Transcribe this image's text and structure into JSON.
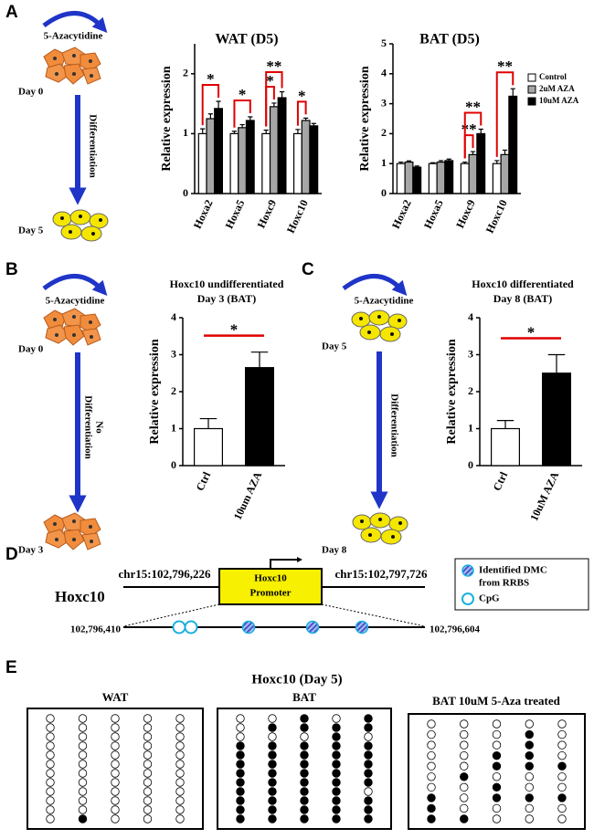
{
  "panel_labels": [
    "A",
    "B",
    "C",
    "D",
    "E"
  ],
  "schemes": [
    {
      "drug": "5-Azacytidine",
      "start": "Day 0",
      "process": [
        "Differentiation"
      ],
      "end": "Day 5"
    },
    {
      "drug": "5-Azacytidine",
      "start": "Day 0",
      "process": [
        "No",
        "Differentiation"
      ],
      "end": "Day 3"
    },
    {
      "drug": "5-Azacytidine",
      "start": "Day 5",
      "process": [
        "Differentiation"
      ],
      "end": "Day 8"
    }
  ],
  "chart_data": [
    {
      "type": "bar",
      "title": "WAT (D5)",
      "ylabel": "Relative expression",
      "categories": [
        "Hoxa2",
        "Hoxa5",
        "Hoxc9",
        "Hoxc10"
      ],
      "series": [
        {
          "name": "Control",
          "color": "#ffffff",
          "values": [
            1,
            1,
            1,
            1
          ],
          "errors": [
            0.08,
            0.04,
            0.06,
            0.07
          ]
        },
        {
          "name": "2uM AZA",
          "color": "#a6a6a6",
          "values": [
            1.25,
            1.1,
            1.45,
            1.22
          ],
          "errors": [
            0.08,
            0.05,
            0.06,
            0.04
          ]
        },
        {
          "name": "10uM AZA",
          "color": "#000000",
          "values": [
            1.42,
            1.22,
            1.6,
            1.13
          ],
          "errors": [
            0.12,
            0.06,
            0.1,
            0.04
          ]
        }
      ],
      "ylim": [
        0,
        2.5
      ],
      "yticks": [
        0,
        1,
        2
      ],
      "annotation_style": "bracket",
      "annotations": [
        {
          "label": "*",
          "category": 0,
          "from": 0,
          "to": 2
        },
        {
          "label": "*",
          "category": 1,
          "from": 0,
          "to": 2
        },
        {
          "label": "*",
          "category": 2,
          "from": 0,
          "to": 1
        },
        {
          "label": "**",
          "category": 2,
          "from": 0,
          "to": 2
        },
        {
          "label": "*",
          "category": 3,
          "from": 0,
          "to": 1
        }
      ]
    },
    {
      "type": "bar",
      "title": "BAT (D5)",
      "ylabel": "Relative expression",
      "categories": [
        "Hoxa2",
        "Hoxa5",
        "Hoxc9",
        "Hoxc10"
      ],
      "series": [
        {
          "name": "Control",
          "color": "#ffffff",
          "values": [
            1,
            1,
            1,
            1
          ],
          "errors": [
            0.05,
            0.03,
            0.05,
            0.1
          ]
        },
        {
          "name": "2uM AZA",
          "color": "#a6a6a6",
          "values": [
            1.05,
            1.05,
            1.3,
            1.3
          ],
          "errors": [
            0.04,
            0.05,
            0.1,
            0.15
          ]
        },
        {
          "name": "10uM AZA",
          "color": "#000000",
          "values": [
            0.88,
            1.1,
            2.0,
            3.25
          ],
          "errors": [
            0.04,
            0.05,
            0.15,
            0.25
          ]
        }
      ],
      "ylim": [
        0,
        5
      ],
      "yticks": [
        0,
        1,
        2,
        3,
        4,
        5
      ],
      "legend": "right",
      "annotation_style": "bracket",
      "annotations": [
        {
          "label": "**",
          "category": 2,
          "from": 0,
          "to": 1
        },
        {
          "label": "**",
          "category": 2,
          "from": 0,
          "to": 2
        },
        {
          "label": "**",
          "category": 3,
          "from": 0,
          "to": 2
        }
      ]
    },
    {
      "type": "bar",
      "title": [
        "Hoxc10 undifferentiated",
        "Day 3 (BAT)"
      ],
      "ylabel": "Relative expression",
      "categories": [
        "Ctrl",
        "10um AZA"
      ],
      "values": [
        1,
        2.65
      ],
      "errors": [
        0.27,
        0.42
      ],
      "colors": [
        "#ffffff",
        "#000000"
      ],
      "ylim": [
        0,
        4
      ],
      "yticks": [
        0,
        1,
        2,
        3,
        4
      ],
      "annotation_style": "line",
      "annotations": [
        {
          "label": "*",
          "from": 0,
          "to": 1
        }
      ]
    },
    {
      "type": "bar",
      "title": [
        "Hoxc10 differentiated",
        "Day 8 (BAT)"
      ],
      "ylabel": "Relative expression",
      "categories": [
        "Ctrl",
        "10uM AZA"
      ],
      "values": [
        1,
        2.5
      ],
      "errors": [
        0.22,
        0.5
      ],
      "colors": [
        "#ffffff",
        "#000000"
      ],
      "ylim": [
        0,
        4
      ],
      "yticks": [
        0,
        1,
        2,
        3,
        4
      ],
      "annotation_style": "line",
      "annotations": [
        {
          "label": "*",
          "from": 0,
          "to": 1
        }
      ]
    }
  ],
  "panel_d": {
    "gene": "Hoxc10",
    "left_coord": "chr15:102,796,226",
    "right_coord": "chr15:102,797,726",
    "box": [
      "Hoxc10",
      "Promoter"
    ],
    "left_sub": "102,796,410",
    "right_sub": "102,796,604",
    "legend": [
      "Identified DMC",
      "from RRBS",
      "CpG"
    ]
  },
  "panel_e": {
    "title": "Hoxc10 (Day 5)",
    "groups": [
      {
        "name": "WAT",
        "columns": [
          [
            0,
            0,
            0,
            0,
            0,
            0,
            0,
            0,
            0,
            0,
            0,
            0
          ],
          [
            0,
            0,
            0,
            0,
            0,
            0,
            0,
            0,
            0,
            0,
            0,
            1
          ],
          [
            0,
            0,
            0,
            0,
            0,
            0,
            0,
            0,
            0,
            0,
            0,
            0
          ],
          [
            0,
            0,
            0,
            0,
            0,
            0,
            0,
            0,
            0,
            0,
            0,
            0
          ],
          [
            0,
            0,
            0,
            0,
            0,
            0,
            0,
            0,
            0,
            0,
            0,
            0
          ]
        ]
      },
      {
        "name": "BAT",
        "columns": [
          [
            0,
            0,
            0,
            1,
            1,
            1,
            1,
            1,
            1,
            1,
            1,
            1
          ],
          [
            0,
            1,
            0,
            1,
            1,
            1,
            1,
            1,
            1,
            1,
            1,
            1
          ],
          [
            1,
            1,
            0,
            1,
            1,
            1,
            1,
            1,
            1,
            1,
            1,
            1
          ],
          [
            0,
            1,
            1,
            1,
            1,
            1,
            1,
            1,
            1,
            1,
            1,
            1
          ],
          [
            1,
            1,
            0,
            1,
            1,
            1,
            1,
            1,
            0,
            1,
            1,
            1
          ]
        ]
      },
      {
        "name": "BAT 10uM 5-Aza treated",
        "columns": [
          [
            0,
            0,
            0,
            0,
            0,
            0,
            0,
            1,
            1,
            1
          ],
          [
            0,
            0,
            0,
            0,
            0,
            1,
            0,
            0,
            0,
            1
          ],
          [
            0,
            0,
            0,
            1,
            1,
            0,
            1,
            1,
            0,
            0
          ],
          [
            0,
            1,
            1,
            1,
            1,
            0,
            0,
            1,
            0,
            0
          ],
          [
            0,
            0,
            0,
            0,
            1,
            0,
            0,
            1,
            0,
            0
          ]
        ]
      }
    ]
  }
}
